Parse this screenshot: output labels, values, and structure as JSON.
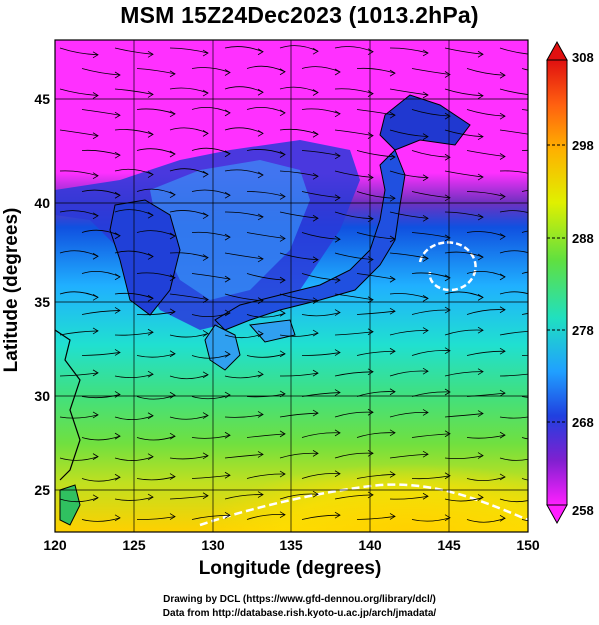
{
  "title": "MSM 15Z24Dec2023 (1013.2hPa)",
  "xaxis": {
    "label": "Longitude (degrees)",
    "ticks": [
      "120",
      "125",
      "130",
      "135",
      "140",
      "145",
      "150"
    ]
  },
  "yaxis": {
    "label": "Latitude  (degrees)",
    "ticks": [
      "25",
      "30",
      "35",
      "40",
      "45"
    ]
  },
  "colorbar": {
    "ticks": [
      "308",
      "298",
      "288",
      "278",
      "268",
      "258"
    ],
    "min": 258,
    "max": 308
  },
  "credits": {
    "line1": "Drawing by DCL (https://www.gfd-dennou.org/library/dcl/)",
    "line2": "Data from http://database.rish.kyoto-u.ac.jp/arch/jmadata/"
  },
  "map": {
    "lon_range": [
      120,
      150
    ],
    "lat_range": [
      22.5,
      47.5
    ],
    "field": "temperature (K) shaded, wind streamlines",
    "colors": {
      "hot": "#ff4040",
      "warm": "#ffd000",
      "mild": "#40e040",
      "cool": "#00d0d0",
      "cold": "#2040e0",
      "freezing": "#ff20ff"
    }
  }
}
